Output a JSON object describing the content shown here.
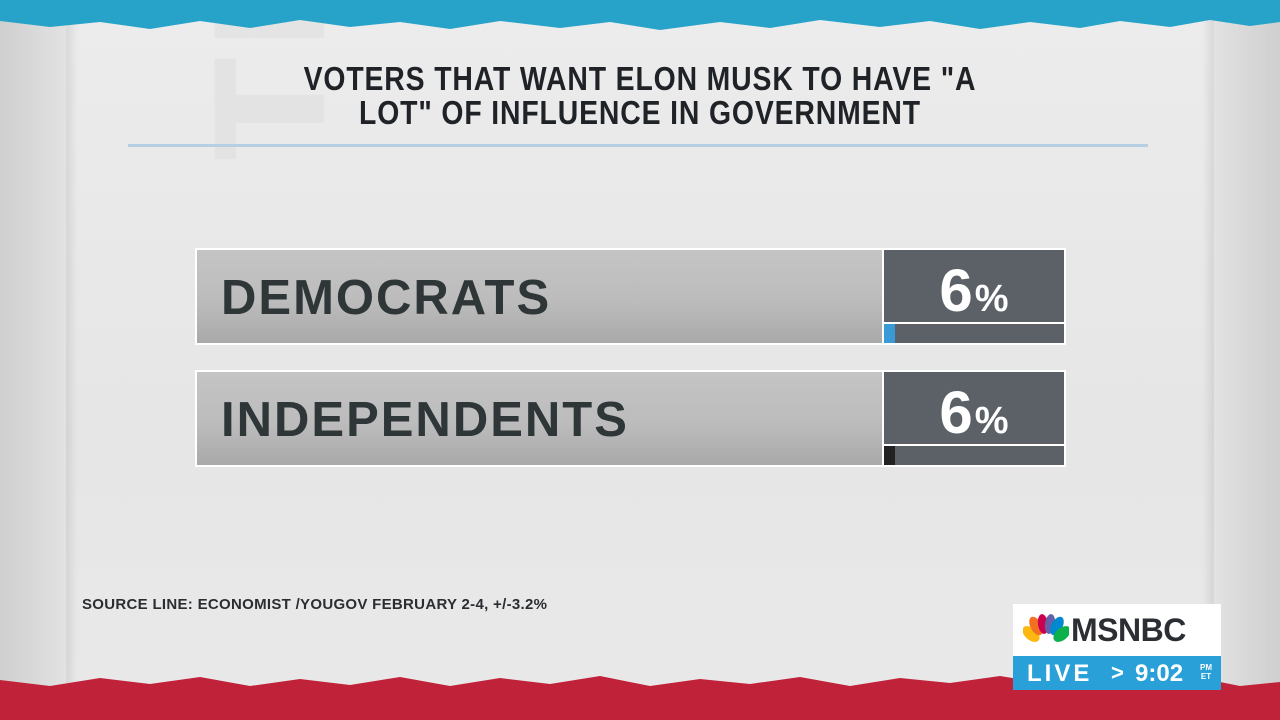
{
  "chart_data": {
    "type": "bar",
    "title": "VOTERS THAT WANT ELON MUSK TO HAVE \"A LOT\" OF INFLUENCE IN GOVERNMENT",
    "categories": [
      "DEMOCRATS",
      "INDEPENDENTS"
    ],
    "series": [
      {
        "values": [
          6,
          6
        ]
      }
    ],
    "value_labels": [
      "6",
      "6"
    ],
    "value_unit": "%",
    "ylim": [
      0,
      100
    ],
    "fill_colors": [
      "#3a9ad6",
      "#222222"
    ],
    "bar_colors": {
      "label_box": "#bdbdbd",
      "value_box": "#5b6166"
    },
    "grid": false,
    "legend": "none"
  },
  "source_line": "SOURCE LINE: ECONOMIST /YOUGOV FEBRUARY 2-4, +/-3.2%",
  "watermark": "THE",
  "network": {
    "name": "MSNBC",
    "live_label": "LIVE",
    "separator": ">",
    "time": "9:02",
    "ampm": "PM",
    "timezone": "ET",
    "accent_color": "#2aa0d8"
  },
  "colors": {
    "top_border": "#27a3c9",
    "bottom_border": "#c0223a"
  }
}
